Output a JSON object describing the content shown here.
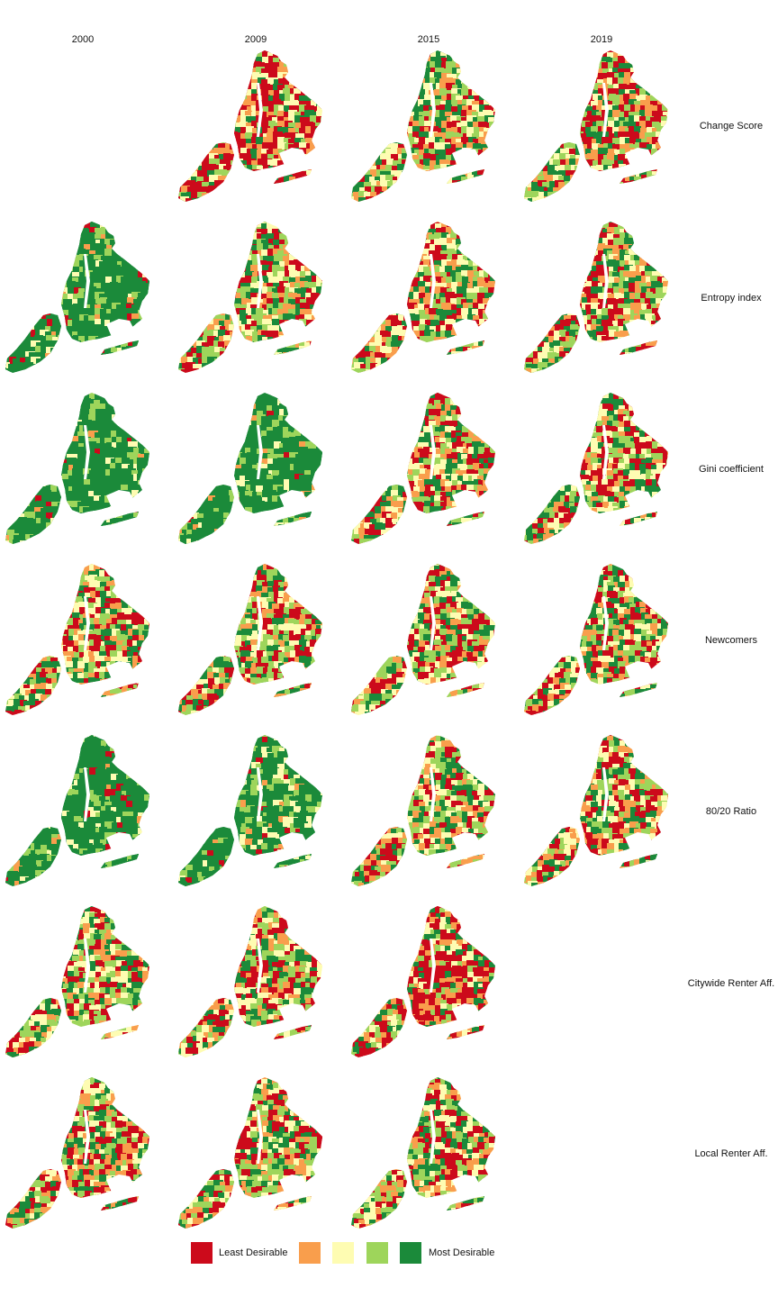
{
  "columns": [
    "2000",
    "2009",
    "2015",
    "2019"
  ],
  "rows": [
    {
      "label": "Change Score",
      "available": [
        false,
        true,
        true,
        true
      ]
    },
    {
      "label": "Entropy index",
      "available": [
        true,
        true,
        true,
        true
      ]
    },
    {
      "label": "Gini coefficient",
      "available": [
        true,
        true,
        true,
        true
      ]
    },
    {
      "label": "Newcomers",
      "available": [
        true,
        true,
        true,
        true
      ]
    },
    {
      "label": "80/20 Ratio",
      "available": [
        true,
        true,
        true,
        true
      ]
    },
    {
      "label": "Citywide Renter Aff.",
      "available": [
        true,
        true,
        true,
        false
      ]
    },
    {
      "label": "Local Renter Aff.",
      "available": [
        true,
        true,
        true,
        false
      ]
    }
  ],
  "dominant_class": [
    [
      null,
      "least",
      "mixed",
      "mixed"
    ],
    [
      "most",
      "mixed",
      "mixed",
      "mixed"
    ],
    [
      "most",
      "most",
      "mixed",
      "mixed"
    ],
    [
      "mixed",
      "mixed",
      "mixed",
      "mixed"
    ],
    [
      "most",
      "most",
      "mixed",
      "mixed"
    ],
    [
      "mixed",
      "mixed",
      "least",
      null
    ],
    [
      "mixed",
      "mixed",
      "mixed",
      null
    ]
  ],
  "legend": {
    "items": [
      {
        "label": "Least Desirable",
        "color": "#cc0a1b"
      },
      {
        "label": "",
        "color": "#f99e4c"
      },
      {
        "label": "",
        "color": "#fefcb2"
      },
      {
        "label": "",
        "color": "#9ed55b"
      },
      {
        "label": "Most Desirable",
        "color": "#1b8a3a"
      }
    ]
  }
}
